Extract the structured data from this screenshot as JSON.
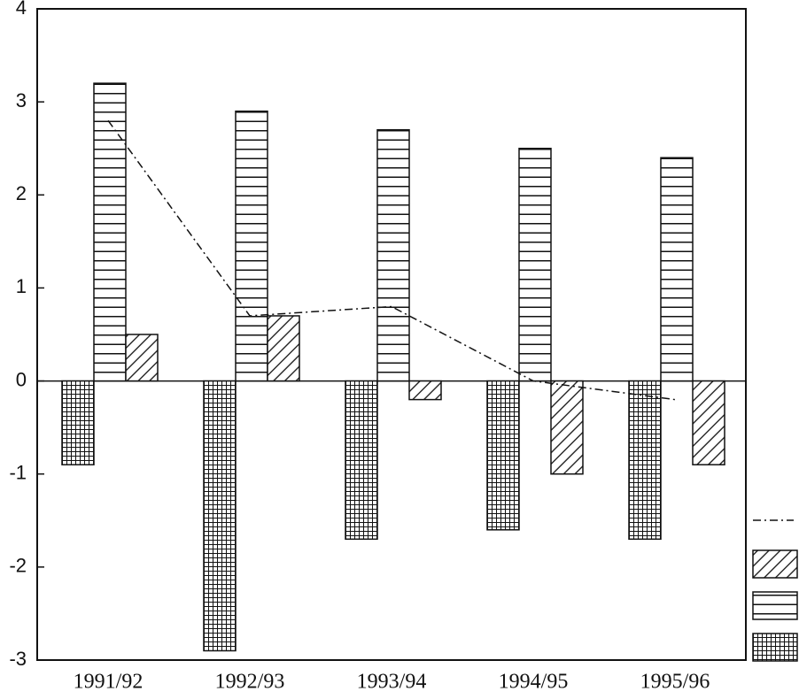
{
  "chart_data": {
    "type": "bar",
    "categories": [
      "1991/92",
      "1992/93",
      "1993/94",
      "1994/95",
      "1995/96"
    ],
    "series": [
      {
        "color": "#111111",
        "pattern": "crosshatch",
        "values": [
          -0.9,
          -2.9,
          -1.7,
          -1.6,
          -1.7
        ]
      },
      {
        "color": "#111111",
        "pattern": "horizontal",
        "values": [
          3.2,
          2.9,
          2.7,
          2.5,
          2.4
        ]
      },
      {
        "color": "#111111",
        "pattern": "diagonal",
        "values": [
          0.5,
          0.7,
          -0.2,
          -1.0,
          -0.9
        ]
      },
      {
        "color": "#111111",
        "type": "line",
        "dash": "dashdot",
        "values": [
          2.8,
          0.7,
          0.8,
          0.0,
          -0.2
        ]
      }
    ],
    "ylim": [
      -3,
      4
    ],
    "yticks": [
      -3,
      -2,
      -1,
      0,
      1,
      2,
      3,
      4
    ],
    "legend": "right"
  }
}
